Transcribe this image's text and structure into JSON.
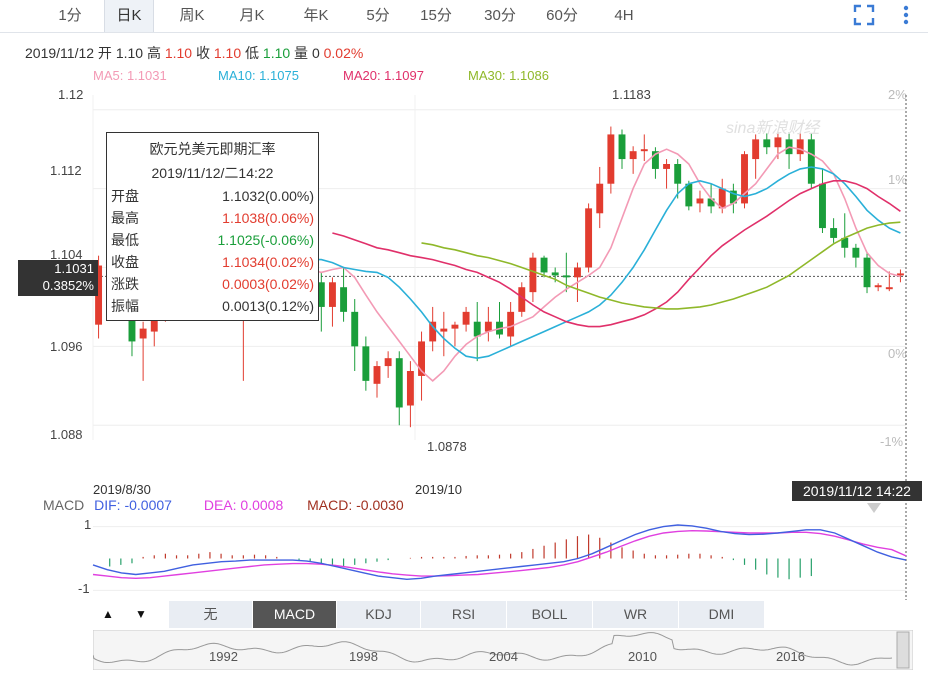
{
  "tabs": [
    {
      "label": "1分"
    },
    {
      "label": "日K"
    },
    {
      "label": "周K"
    },
    {
      "label": "月K"
    },
    {
      "label": "年K"
    },
    {
      "label": "5分"
    },
    {
      "label": "15分"
    },
    {
      "label": "30分"
    },
    {
      "label": "60分"
    },
    {
      "label": "4H"
    }
  ],
  "toolbar": {
    "fullscreen_icon": "fullscreen-icon",
    "more_icon": "more-vertical-icon"
  },
  "quote": {
    "date": "2019/11/12",
    "open_label": "开",
    "open": "1.10",
    "high_label": "高",
    "high": "1.10",
    "close_label": "收",
    "close": "1.10",
    "low_label": "低",
    "low": "1.10",
    "vol_label": "量",
    "vol": "0",
    "chg": "0.02%"
  },
  "ma": {
    "ma5": "MA5: 1.1031",
    "ma10": "MA10: 1.1075",
    "ma20": "MA20: 1.1097",
    "ma30": "MA30: 1.1086",
    "colors": {
      "ma5": "#f39ab5",
      "ma10": "#2ab0d8",
      "ma20": "#e0306a",
      "ma30": "#8fb82a"
    }
  },
  "colors": {
    "up": "#e23c2f",
    "down": "#1a9e3a",
    "accent": "#3a7bd5"
  },
  "tooltip": {
    "title": "欧元兑美元即期汇率",
    "datetime": "2019/11/12/二14:22",
    "rows": [
      {
        "k": "开盘",
        "v": "1.1032(0.00%)",
        "c": "black"
      },
      {
        "k": "最高",
        "v": "1.1038(0.06%)",
        "c": "red"
      },
      {
        "k": "最低",
        "v": "1.1025(-0.06%)",
        "c": "green"
      },
      {
        "k": "收盘",
        "v": "1.1034(0.02%)",
        "c": "red"
      },
      {
        "k": "涨跌",
        "v": "0.0003(0.02%)",
        "c": "red"
      },
      {
        "k": "振幅",
        "v": "0.0013(0.12%)",
        "c": "black"
      }
    ]
  },
  "cursor": {
    "price": "1.1031",
    "pct": "0.3852%",
    "time": "2019/11/12 14:22"
  },
  "watermark": "sina新浪财经",
  "chart_data": {
    "type": "candlestick",
    "title": "",
    "y_ticks": [
      "1.12",
      "1.112",
      "1.104",
      "1.096",
      "1.088"
    ],
    "y_right_ticks": [
      "2%",
      "1%",
      "0%",
      "-1%"
    ],
    "ylim": [
      1.0865,
      1.1215
    ],
    "x_labels": [
      "2019/8/30",
      "2019/10"
    ],
    "annotations": {
      "max": "1.1183",
      "min": "1.0878"
    },
    "candles": [
      {
        "o": 1.0982,
        "h": 1.1052,
        "l": 1.0968,
        "c": 1.1042
      },
      {
        "o": 1.104,
        "h": 1.1058,
        "l": 1.103,
        "c": 1.105
      },
      {
        "o": 1.105,
        "h": 1.106,
        "l": 1.0998,
        "c": 1.1008
      },
      {
        "o": 1.101,
        "h": 1.103,
        "l": 1.095,
        "c": 1.0965
      },
      {
        "o": 1.0968,
        "h": 1.0985,
        "l": 1.0925,
        "c": 1.0978
      },
      {
        "o": 1.0975,
        "h": 1.101,
        "l": 1.096,
        "c": 1.099
      },
      {
        "o": 1.099,
        "h": 1.1035,
        "l": 1.0985,
        "c": 1.102
      },
      {
        "o": 1.102,
        "h": 1.104,
        "l": 1.1015,
        "c": 1.1025
      },
      {
        "o": 1.1025,
        "h": 1.1045,
        "l": 1.101,
        "c": 1.103
      },
      {
        "o": 1.103,
        "h": 1.106,
        "l": 1.102,
        "c": 1.1045
      },
      {
        "o": 1.1045,
        "h": 1.1075,
        "l": 1.1035,
        "c": 1.106
      },
      {
        "o": 1.106,
        "h": 1.107,
        "l": 1.104,
        "c": 1.1048
      },
      {
        "o": 1.1048,
        "h": 1.1065,
        "l": 1.101,
        "c": 1.1018
      },
      {
        "o": 1.102,
        "h": 1.1042,
        "l": 1.0925,
        "c": 1.103
      },
      {
        "o": 1.103,
        "h": 1.106,
        "l": 1.102,
        "c": 1.105
      },
      {
        "o": 1.105,
        "h": 1.1065,
        "l": 1.104,
        "c": 1.1055
      },
      {
        "o": 1.1055,
        "h": 1.106,
        "l": 1.103,
        "c": 1.104
      },
      {
        "o": 1.104,
        "h": 1.1055,
        "l": 1.102,
        "c": 1.103
      },
      {
        "o": 1.1045,
        "h": 1.1058,
        "l": 1.101,
        "c": 1.102
      },
      {
        "o": 1.103,
        "h": 1.1038,
        "l": 1.1018,
        "c": 1.1024
      },
      {
        "o": 1.1025,
        "h": 1.1035,
        "l": 1.0975,
        "c": 1.1
      },
      {
        "o": 1.1,
        "h": 1.103,
        "l": 1.098,
        "c": 1.1025
      },
      {
        "o": 1.102,
        "h": 1.104,
        "l": 1.0985,
        "c": 1.0995
      },
      {
        "o": 1.0995,
        "h": 1.1008,
        "l": 1.0935,
        "c": 1.096
      },
      {
        "o": 1.096,
        "h": 1.097,
        "l": 1.0915,
        "c": 1.0925
      },
      {
        "o": 1.0922,
        "h": 1.0945,
        "l": 1.0908,
        "c": 1.094
      },
      {
        "o": 1.094,
        "h": 1.0955,
        "l": 1.0928,
        "c": 1.0948
      },
      {
        "o": 1.0948,
        "h": 1.0955,
        "l": 1.088,
        "c": 1.0898
      },
      {
        "o": 1.09,
        "h": 1.0945,
        "l": 1.0878,
        "c": 1.0935
      },
      {
        "o": 1.093,
        "h": 1.0975,
        "l": 1.0905,
        "c": 1.0965
      },
      {
        "o": 1.0965,
        "h": 1.1,
        "l": 1.0955,
        "c": 1.0985
      },
      {
        "o": 1.0975,
        "h": 1.0995,
        "l": 1.095,
        "c": 1.0978
      },
      {
        "o": 1.0978,
        "h": 1.0985,
        "l": 1.096,
        "c": 1.0982
      },
      {
        "o": 1.0982,
        "h": 1.1,
        "l": 1.0975,
        "c": 1.0995
      },
      {
        "o": 1.0985,
        "h": 1.1005,
        "l": 1.0945,
        "c": 1.097
      },
      {
        "o": 1.0975,
        "h": 1.1,
        "l": 1.0965,
        "c": 1.0985
      },
      {
        "o": 1.0985,
        "h": 1.1005,
        "l": 1.0968,
        "c": 1.0972
      },
      {
        "o": 1.097,
        "h": 1.1005,
        "l": 1.096,
        "c": 1.0995
      },
      {
        "o": 1.0995,
        "h": 1.1025,
        "l": 1.099,
        "c": 1.102
      },
      {
        "o": 1.1015,
        "h": 1.1055,
        "l": 1.1005,
        "c": 1.105
      },
      {
        "o": 1.105,
        "h": 1.1052,
        "l": 1.103,
        "c": 1.1035
      },
      {
        "o": 1.1035,
        "h": 1.104,
        "l": 1.1025,
        "c": 1.1032
      },
      {
        "o": 1.1032,
        "h": 1.1055,
        "l": 1.1015,
        "c": 1.103
      },
      {
        "o": 1.103,
        "h": 1.1045,
        "l": 1.1005,
        "c": 1.104
      },
      {
        "o": 1.104,
        "h": 1.1105,
        "l": 1.1035,
        "c": 1.11
      },
      {
        "o": 1.1095,
        "h": 1.1142,
        "l": 1.108,
        "c": 1.1125
      },
      {
        "o": 1.1125,
        "h": 1.1183,
        "l": 1.1115,
        "c": 1.1175
      },
      {
        "o": 1.1175,
        "h": 1.118,
        "l": 1.114,
        "c": 1.115
      },
      {
        "o": 1.115,
        "h": 1.1163,
        "l": 1.1135,
        "c": 1.1158
      },
      {
        "o": 1.1158,
        "h": 1.1175,
        "l": 1.1148,
        "c": 1.116
      },
      {
        "o": 1.1158,
        "h": 1.1162,
        "l": 1.113,
        "c": 1.114
      },
      {
        "o": 1.114,
        "h": 1.115,
        "l": 1.112,
        "c": 1.1145
      },
      {
        "o": 1.1145,
        "h": 1.115,
        "l": 1.111,
        "c": 1.1125
      },
      {
        "o": 1.1125,
        "h": 1.1128,
        "l": 1.1098,
        "c": 1.1102
      },
      {
        "o": 1.1105,
        "h": 1.1118,
        "l": 1.1096,
        "c": 1.111
      },
      {
        "o": 1.111,
        "h": 1.1125,
        "l": 1.1095,
        "c": 1.1102
      },
      {
        "o": 1.11,
        "h": 1.113,
        "l": 1.1095,
        "c": 1.112
      },
      {
        "o": 1.1118,
        "h": 1.1125,
        "l": 1.1095,
        "c": 1.1105
      },
      {
        "o": 1.1105,
        "h": 1.1158,
        "l": 1.11,
        "c": 1.1155
      },
      {
        "o": 1.115,
        "h": 1.1175,
        "l": 1.113,
        "c": 1.117
      },
      {
        "o": 1.117,
        "h": 1.1176,
        "l": 1.1155,
        "c": 1.1162
      },
      {
        "o": 1.1162,
        "h": 1.1178,
        "l": 1.115,
        "c": 1.1172
      },
      {
        "o": 1.117,
        "h": 1.1177,
        "l": 1.114,
        "c": 1.1155
      },
      {
        "o": 1.1155,
        "h": 1.1177,
        "l": 1.1148,
        "c": 1.117
      },
      {
        "o": 1.117,
        "h": 1.1176,
        "l": 1.112,
        "c": 1.1125
      },
      {
        "o": 1.1125,
        "h": 1.114,
        "l": 1.1075,
        "c": 1.108
      },
      {
        "o": 1.108,
        "h": 1.109,
        "l": 1.1065,
        "c": 1.107
      },
      {
        "o": 1.107,
        "h": 1.1095,
        "l": 1.105,
        "c": 1.106
      },
      {
        "o": 1.106,
        "h": 1.1064,
        "l": 1.104,
        "c": 1.105
      },
      {
        "o": 1.105,
        "h": 1.1055,
        "l": 1.1014,
        "c": 1.102
      },
      {
        "o": 1.102,
        "h": 1.1024,
        "l": 1.1016,
        "c": 1.1022
      },
      {
        "o": 1.1018,
        "h": 1.1036,
        "l": 1.1016,
        "c": 1.102
      },
      {
        "o": 1.1032,
        "h": 1.1038,
        "l": 1.1025,
        "c": 1.1034
      }
    ],
    "ma_lines": {
      "ma5": [
        1.108,
        1.1072,
        1.106,
        1.1052,
        1.104,
        1.1038,
        1.1048,
        1.106,
        1.1065,
        1.1058,
        1.1045,
        1.1038,
        1.1035,
        1.1038,
        1.104,
        1.103,
        1.1012,
        1.0995,
        1.098,
        1.0965,
        1.095,
        1.0935,
        1.0925,
        1.0935,
        1.095,
        1.0962,
        1.097,
        1.0975,
        1.0978,
        1.098,
        1.0985,
        1.099,
        1.1,
        1.101,
        1.1018,
        1.1025,
        1.1032,
        1.104,
        1.106,
        1.109,
        1.112,
        1.1145,
        1.1155,
        1.116,
        1.1155,
        1.1145,
        1.1125,
        1.111,
        1.11,
        1.1105,
        1.1115,
        1.1125,
        1.114,
        1.1155,
        1.1162,
        1.116,
        1.1155,
        1.1148,
        1.1135,
        1.111,
        1.108,
        1.1055,
        1.1042,
        1.1034,
        1.1031
      ],
      "ma10": [
        1.1065,
        1.1058,
        1.105,
        1.1045,
        1.104,
        1.1038,
        1.104,
        1.1045,
        1.1048,
        1.1048,
        1.1045,
        1.104,
        1.1038,
        1.1036,
        1.1035,
        1.103,
        1.102,
        1.1008,
        1.0995,
        1.098,
        1.0968,
        1.0958,
        1.095,
        1.0948,
        1.095,
        1.0955,
        1.096,
        1.0965,
        1.097,
        1.0975,
        1.098,
        1.0985,
        1.099,
        1.0995,
        1.1002,
        1.1012,
        1.1025,
        1.104,
        1.1058,
        1.1078,
        1.1098,
        1.1115,
        1.1125,
        1.1128,
        1.1125,
        1.112,
        1.1115,
        1.1112,
        1.1115,
        1.112,
        1.1128,
        1.1135,
        1.114,
        1.1142,
        1.114,
        1.1135,
        1.1125,
        1.1112,
        1.1098,
        1.1088,
        1.108,
        1.1075
      ],
      "ma20": [
        1.1075,
        1.1072,
        1.1068,
        1.1064,
        1.106,
        1.1058,
        1.1055,
        1.1052,
        1.105,
        1.1048,
        1.1045,
        1.1042,
        1.1038,
        1.1035,
        1.103,
        1.1025,
        1.1018,
        1.101,
        1.1002,
        1.0995,
        1.099,
        1.0985,
        1.0982,
        1.098,
        1.098,
        1.0982,
        1.0985,
        1.0988,
        1.0992,
        1.0998,
        1.1005,
        1.1015,
        1.1028,
        1.104,
        1.1052,
        1.1062,
        1.107,
        1.1078,
        1.1085,
        1.1092,
        1.11,
        1.1108,
        1.1115,
        1.112,
        1.1125,
        1.1128,
        1.1128,
        1.1125,
        1.112,
        1.1112,
        1.1105,
        1.1097
      ],
      "ma30": [
        1.1065,
        1.1063,
        1.106,
        1.1058,
        1.1055,
        1.1052,
        1.105,
        1.1047,
        1.1044,
        1.104,
        1.1036,
        1.1032,
        1.1028,
        1.1022,
        1.1018,
        1.1014,
        1.101,
        1.1007,
        1.1004,
        1.1002,
        1.1,
        1.0999,
        1.0998,
        1.0998,
        1.0999,
        1.1,
        1.1002,
        1.1005,
        1.1008,
        1.1012,
        1.1016,
        1.102,
        1.1026,
        1.1032,
        1.104,
        1.1048,
        1.1056,
        1.1064,
        1.107,
        1.1075,
        1.108,
        1.1083,
        1.1085,
        1.1086
      ]
    }
  },
  "macd": {
    "label": "MACD",
    "dif": "DIF: -0.0007",
    "dea": "DEA: 0.0008",
    "macd": "MACD: -0.0030",
    "y_ticks": [
      "1",
      "-1"
    ],
    "colors": {
      "dif": "#4060e0",
      "dea": "#e040e0"
    },
    "ylim": [
      -1.3,
      1.3
    ],
    "hist": [
      0,
      -0.25,
      -0.2,
      -0.15,
      0.05,
      0.1,
      0.15,
      0.1,
      0.1,
      0.15,
      0.2,
      0.15,
      0.1,
      0.1,
      0.12,
      0.1,
      0.05,
      0,
      -0.05,
      -0.1,
      -0.15,
      -0.2,
      -0.25,
      -0.2,
      -0.15,
      -0.1,
      -0.05,
      0,
      0.02,
      0.05,
      0.05,
      0.05,
      0.05,
      0.08,
      0.1,
      0.1,
      0.12,
      0.15,
      0.2,
      0.3,
      0.4,
      0.5,
      0.6,
      0.7,
      0.75,
      0.65,
      0.5,
      0.35,
      0.25,
      0.15,
      0.1,
      0.1,
      0.12,
      0.15,
      0.15,
      0.1,
      0.05,
      -0.05,
      -0.2,
      -0.35,
      -0.5,
      -0.6,
      -0.65,
      -0.6,
      -0.55
    ],
    "dif_line": [
      -0.2,
      -0.35,
      -0.45,
      -0.5,
      -0.45,
      -0.4,
      -0.3,
      -0.2,
      -0.15,
      -0.1,
      -0.08,
      -0.05,
      -0.05,
      -0.05,
      -0.05,
      -0.08,
      -0.15,
      -0.25,
      -0.35,
      -0.45,
      -0.55,
      -0.6,
      -0.65,
      -0.62,
      -0.55,
      -0.5,
      -0.45,
      -0.4,
      -0.35,
      -0.3,
      -0.25,
      -0.2,
      -0.15,
      -0.1,
      0,
      0.15,
      0.35,
      0.55,
      0.75,
      0.9,
      1.0,
      1.05,
      1.02,
      0.95,
      0.85,
      0.78,
      0.75,
      0.76,
      0.8,
      0.85,
      0.9,
      0.9,
      0.8,
      0.6,
      0.4,
      0.2,
      0.05,
      -0.05
    ],
    "dea_line": [
      -0.5,
      -0.55,
      -0.6,
      -0.62,
      -0.6,
      -0.55,
      -0.5,
      -0.45,
      -0.4,
      -0.35,
      -0.3,
      -0.25,
      -0.2,
      -0.18,
      -0.16,
      -0.16,
      -0.18,
      -0.22,
      -0.28,
      -0.35,
      -0.42,
      -0.48,
      -0.52,
      -0.55,
      -0.55,
      -0.54,
      -0.52,
      -0.5,
      -0.46,
      -0.42,
      -0.38,
      -0.33,
      -0.28,
      -0.2,
      -0.1,
      0.05,
      0.2,
      0.38,
      0.55,
      0.7,
      0.8,
      0.85,
      0.87,
      0.86,
      0.84,
      0.82,
      0.8,
      0.8,
      0.8,
      0.82,
      0.82,
      0.78,
      0.7,
      0.58,
      0.45,
      0.35,
      0.28,
      0.08
    ]
  },
  "indicators": [
    {
      "label": "无"
    },
    {
      "label": "MACD"
    },
    {
      "label": "KDJ"
    },
    {
      "label": "RSI"
    },
    {
      "label": "BOLL"
    },
    {
      "label": "WR"
    },
    {
      "label": "DMI"
    }
  ],
  "active_indicator": "MACD",
  "navigator": {
    "years": [
      "1992",
      "1998",
      "2004",
      "2010",
      "2016"
    ]
  }
}
